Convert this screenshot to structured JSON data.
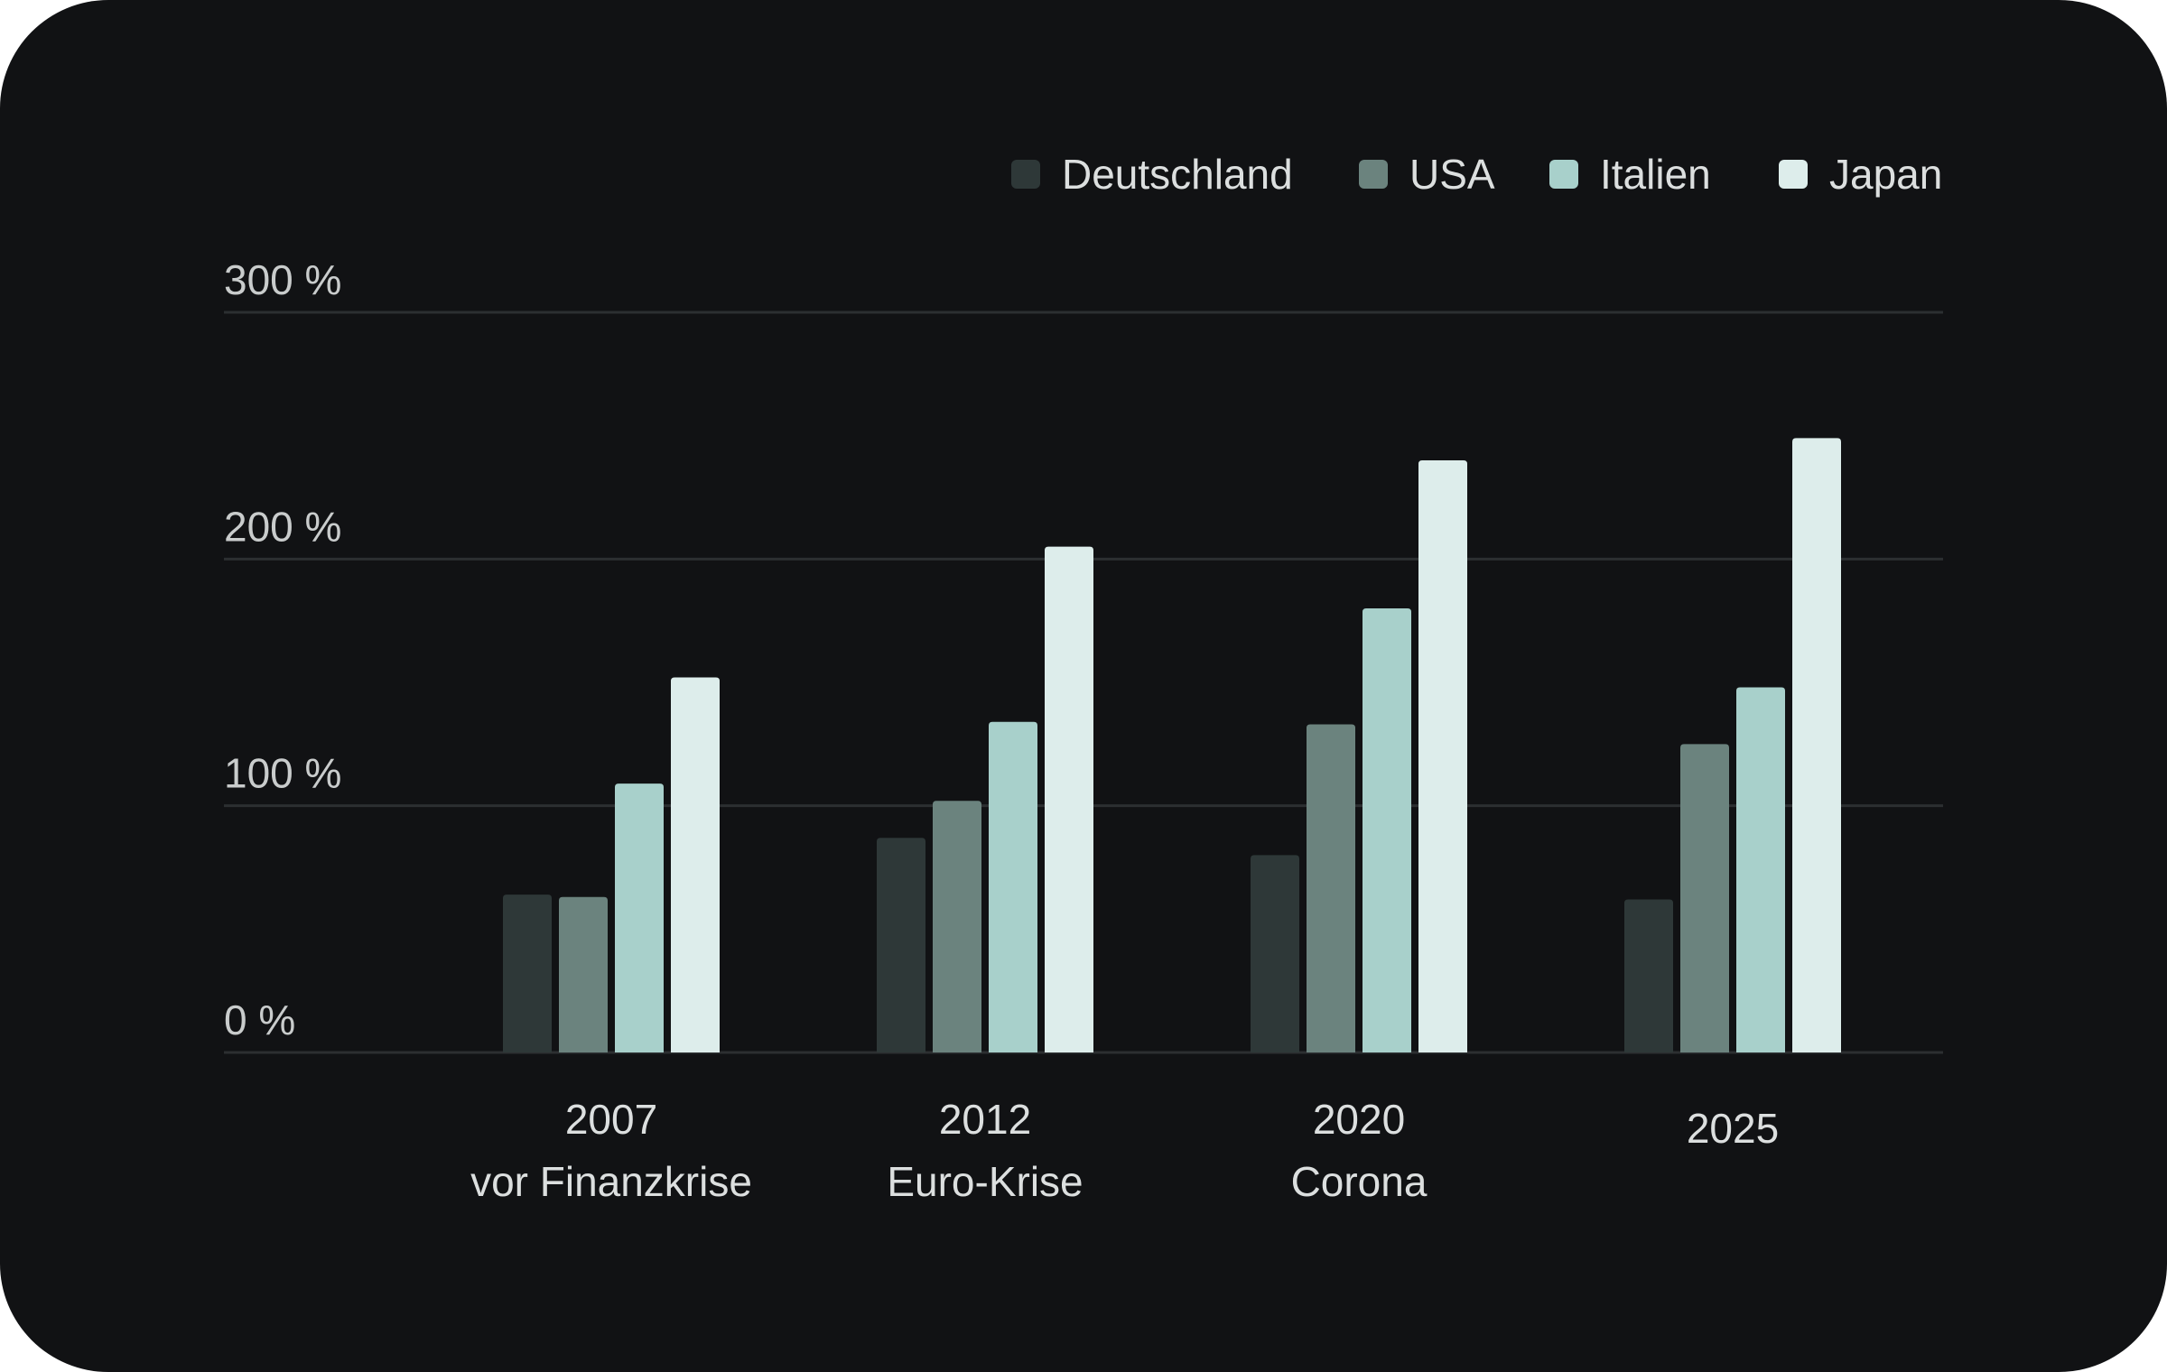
{
  "colors": {
    "background": "#111214",
    "grid": "#2c2f31",
    "text": "#dcdfdf"
  },
  "chart_data": {
    "type": "bar",
    "categories": [
      "2007",
      "2012",
      "2020",
      "2025"
    ],
    "category_sublabels": [
      "vor Finanzkrise",
      "Euro-Krise",
      "Corona",
      ""
    ],
    "series": [
      {
        "name": "Deutschland",
        "color": "#2e3838",
        "values": [
          64,
          87,
          80,
          62
        ]
      },
      {
        "name": "USA",
        "color": "#6b837e",
        "values": [
          63,
          102,
          133,
          125
        ]
      },
      {
        "name": "Italien",
        "color": "#a8d0cb",
        "values": [
          109,
          134,
          180,
          148
        ]
      },
      {
        "name": "Japan",
        "color": "#ddedeb",
        "values": [
          152,
          205,
          240,
          249
        ]
      }
    ],
    "y_ticks": [
      0,
      100,
      200,
      300
    ],
    "y_tick_labels": [
      "0 %",
      "100 %",
      "200 %",
      "300 %"
    ],
    "ylim": [
      0,
      300
    ],
    "grid": true,
    "legend_position": "top-right"
  }
}
